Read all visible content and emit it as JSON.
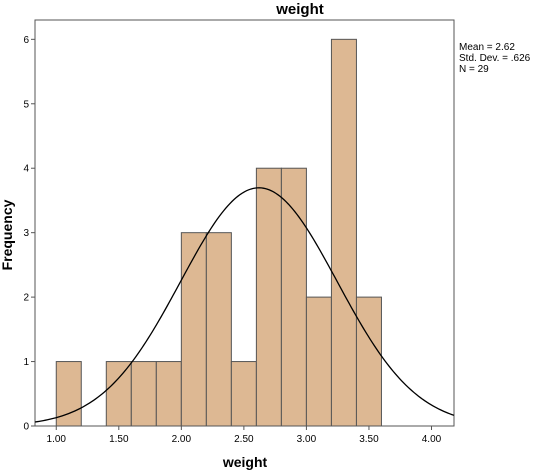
{
  "chart_data": {
    "type": "bar",
    "title": "weight",
    "xlabel": "weight",
    "ylabel": "Frequency",
    "xlim": [
      0.83,
      4.18
    ],
    "ylim": [
      0,
      6.3
    ],
    "bin_width": 0.2,
    "bins": [
      {
        "x": 1.0,
        "count": 1
      },
      {
        "x": 1.2,
        "count": 0
      },
      {
        "x": 1.4,
        "count": 1
      },
      {
        "x": 1.6,
        "count": 1
      },
      {
        "x": 1.8,
        "count": 1
      },
      {
        "x": 2.0,
        "count": 3
      },
      {
        "x": 2.2,
        "count": 3
      },
      {
        "x": 2.4,
        "count": 1
      },
      {
        "x": 2.6,
        "count": 4
      },
      {
        "x": 2.8,
        "count": 4
      },
      {
        "x": 3.0,
        "count": 2
      },
      {
        "x": 3.2,
        "count": 6
      },
      {
        "x": 3.4,
        "count": 2
      }
    ],
    "x_ticks": [
      "1.00",
      "1.50",
      "2.00",
      "2.50",
      "3.00",
      "3.50",
      "4.00"
    ],
    "y_ticks": [
      "0",
      "1",
      "2",
      "3",
      "4",
      "5",
      "6"
    ],
    "normal_curve": {
      "mean": 2.62,
      "std_dev": 0.626,
      "n": 29
    },
    "stats": [
      "Mean = 2.62",
      "Std. Dev. = .626",
      "N = 29"
    ],
    "bar_color": "#ddb893",
    "bar_edge_color": "#555555",
    "curve_color": "#000000",
    "grid": false
  }
}
